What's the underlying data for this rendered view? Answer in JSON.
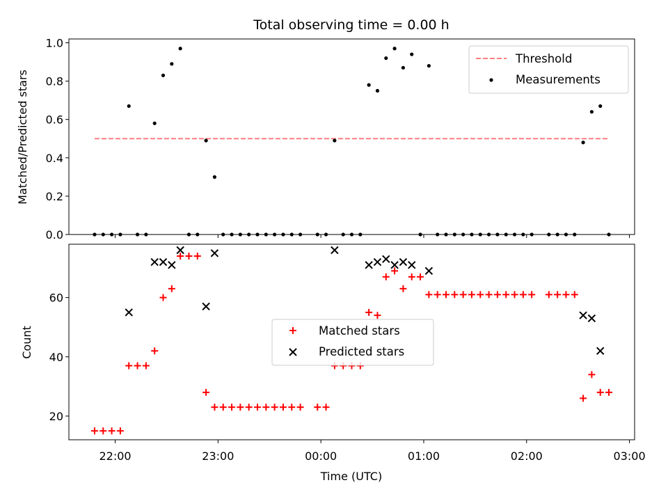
{
  "chart_data": [
    {
      "type": "scatter",
      "title": "Total observing time = 0.00 h",
      "xlabel": "",
      "ylabel": "Matched/Predicted stars",
      "xlim": [
        "21:33",
        "03:03"
      ],
      "ylim": [
        0,
        1.02
      ],
      "yticks": [
        0.0,
        0.2,
        0.4,
        0.6,
        0.8,
        1.0
      ],
      "ytick_labels": [
        "0.0",
        "0.2",
        "0.4",
        "0.6",
        "0.8",
        "1.0"
      ],
      "grid": false,
      "legend_position": "top-right",
      "threshold": {
        "name": "Threshold",
        "y": 0.5,
        "x": [
          "21:48",
          "02:48"
        ],
        "color": "#ff7f7f",
        "style": "dashed"
      },
      "series": [
        {
          "name": "Measurements",
          "color": "#000000",
          "points": [
            [
              "21:48",
              0
            ],
            [
              "21:53",
              0
            ],
            [
              "21:58",
              0
            ],
            [
              "22:03",
              0
            ],
            [
              "22:08",
              0.67
            ],
            [
              "22:13",
              0
            ],
            [
              "22:18",
              0
            ],
            [
              "22:23",
              0.58
            ],
            [
              "22:28",
              0.83
            ],
            [
              "22:33",
              0.89
            ],
            [
              "22:38",
              0.97
            ],
            [
              "22:43",
              0
            ],
            [
              "22:48",
              0
            ],
            [
              "22:53",
              0.49
            ],
            [
              "22:58",
              0.3
            ],
            [
              "23:03",
              0
            ],
            [
              "23:08",
              0
            ],
            [
              "23:13",
              0
            ],
            [
              "23:18",
              0
            ],
            [
              "23:23",
              0
            ],
            [
              "23:28",
              0
            ],
            [
              "23:33",
              0
            ],
            [
              "23:38",
              0
            ],
            [
              "23:43",
              0
            ],
            [
              "23:48",
              0
            ],
            [
              "23:58",
              0
            ],
            [
              "00:03",
              0
            ],
            [
              "00:08",
              0.49
            ],
            [
              "00:13",
              0
            ],
            [
              "00:18",
              0
            ],
            [
              "00:23",
              0
            ],
            [
              "00:28",
              0.78
            ],
            [
              "00:33",
              0.75
            ],
            [
              "00:38",
              0.92
            ],
            [
              "00:43",
              0.97
            ],
            [
              "00:48",
              0.87
            ],
            [
              "00:53",
              0.94
            ],
            [
              "00:58",
              0
            ],
            [
              "01:03",
              0.88
            ],
            [
              "01:08",
              0
            ],
            [
              "01:13",
              0
            ],
            [
              "01:18",
              0
            ],
            [
              "01:23",
              0
            ],
            [
              "01:28",
              0
            ],
            [
              "01:33",
              0
            ],
            [
              "01:38",
              0
            ],
            [
              "01:43",
              0
            ],
            [
              "01:48",
              0
            ],
            [
              "01:53",
              0
            ],
            [
              "01:58",
              0
            ],
            [
              "02:03",
              0
            ],
            [
              "02:13",
              0
            ],
            [
              "02:18",
              0
            ],
            [
              "02:23",
              0
            ],
            [
              "02:28",
              0
            ],
            [
              "02:33",
              0.48
            ],
            [
              "02:38",
              0.64
            ],
            [
              "02:43",
              0.67
            ],
            [
              "02:48",
              0
            ]
          ]
        }
      ]
    },
    {
      "type": "scatter",
      "title": "",
      "xlabel": "Time (UTC)",
      "ylabel": "Count",
      "xlim": [
        "21:33",
        "03:03"
      ],
      "ylim": [
        12,
        78
      ],
      "yticks": [
        20,
        40,
        60
      ],
      "ytick_labels": [
        "20",
        "40",
        "60"
      ],
      "xticks": [
        "22:00",
        "23:00",
        "00:00",
        "01:00",
        "02:00",
        "03:00"
      ],
      "grid": false,
      "legend_position": "center",
      "series": [
        {
          "name": "Matched stars",
          "marker": "plus",
          "color": "#ff0000",
          "points": [
            [
              "21:48",
              15
            ],
            [
              "21:53",
              15
            ],
            [
              "21:58",
              15
            ],
            [
              "22:03",
              15
            ],
            [
              "22:08",
              37
            ],
            [
              "22:13",
              37
            ],
            [
              "22:18",
              37
            ],
            [
              "22:23",
              42
            ],
            [
              "22:28",
              60
            ],
            [
              "22:33",
              63
            ],
            [
              "22:38",
              74
            ],
            [
              "22:43",
              74
            ],
            [
              "22:48",
              74
            ],
            [
              "22:53",
              28
            ],
            [
              "22:58",
              23
            ],
            [
              "23:03",
              23
            ],
            [
              "23:08",
              23
            ],
            [
              "23:13",
              23
            ],
            [
              "23:18",
              23
            ],
            [
              "23:23",
              23
            ],
            [
              "23:28",
              23
            ],
            [
              "23:33",
              23
            ],
            [
              "23:38",
              23
            ],
            [
              "23:43",
              23
            ],
            [
              "23:48",
              23
            ],
            [
              "23:58",
              23
            ],
            [
              "00:03",
              23
            ],
            [
              "00:08",
              37
            ],
            [
              "00:13",
              37
            ],
            [
              "00:18",
              37
            ],
            [
              "00:23",
              37
            ],
            [
              "00:28",
              55
            ],
            [
              "00:33",
              54
            ],
            [
              "00:38",
              67
            ],
            [
              "00:43",
              69
            ],
            [
              "00:48",
              63
            ],
            [
              "00:53",
              67
            ],
            [
              "00:58",
              67
            ],
            [
              "01:03",
              61
            ],
            [
              "01:08",
              61
            ],
            [
              "01:13",
              61
            ],
            [
              "01:18",
              61
            ],
            [
              "01:23",
              61
            ],
            [
              "01:28",
              61
            ],
            [
              "01:33",
              61
            ],
            [
              "01:38",
              61
            ],
            [
              "01:43",
              61
            ],
            [
              "01:48",
              61
            ],
            [
              "01:53",
              61
            ],
            [
              "01:58",
              61
            ],
            [
              "02:03",
              61
            ],
            [
              "02:13",
              61
            ],
            [
              "02:18",
              61
            ],
            [
              "02:23",
              61
            ],
            [
              "02:28",
              61
            ],
            [
              "02:33",
              26
            ],
            [
              "02:38",
              34
            ],
            [
              "02:43",
              28
            ],
            [
              "02:48",
              28
            ]
          ]
        },
        {
          "name": "Predicted stars",
          "marker": "x",
          "color": "#000000",
          "points": [
            [
              "22:08",
              55
            ],
            [
              "22:23",
              72
            ],
            [
              "22:28",
              72
            ],
            [
              "22:33",
              71
            ],
            [
              "22:38",
              76
            ],
            [
              "22:53",
              57
            ],
            [
              "22:58",
              75
            ],
            [
              "00:08",
              76
            ],
            [
              "00:28",
              71
            ],
            [
              "00:33",
              72
            ],
            [
              "00:38",
              73
            ],
            [
              "00:43",
              71
            ],
            [
              "00:48",
              72
            ],
            [
              "00:53",
              71
            ],
            [
              "01:03",
              69
            ],
            [
              "02:33",
              54
            ],
            [
              "02:38",
              53
            ],
            [
              "02:43",
              42
            ]
          ]
        }
      ]
    }
  ]
}
